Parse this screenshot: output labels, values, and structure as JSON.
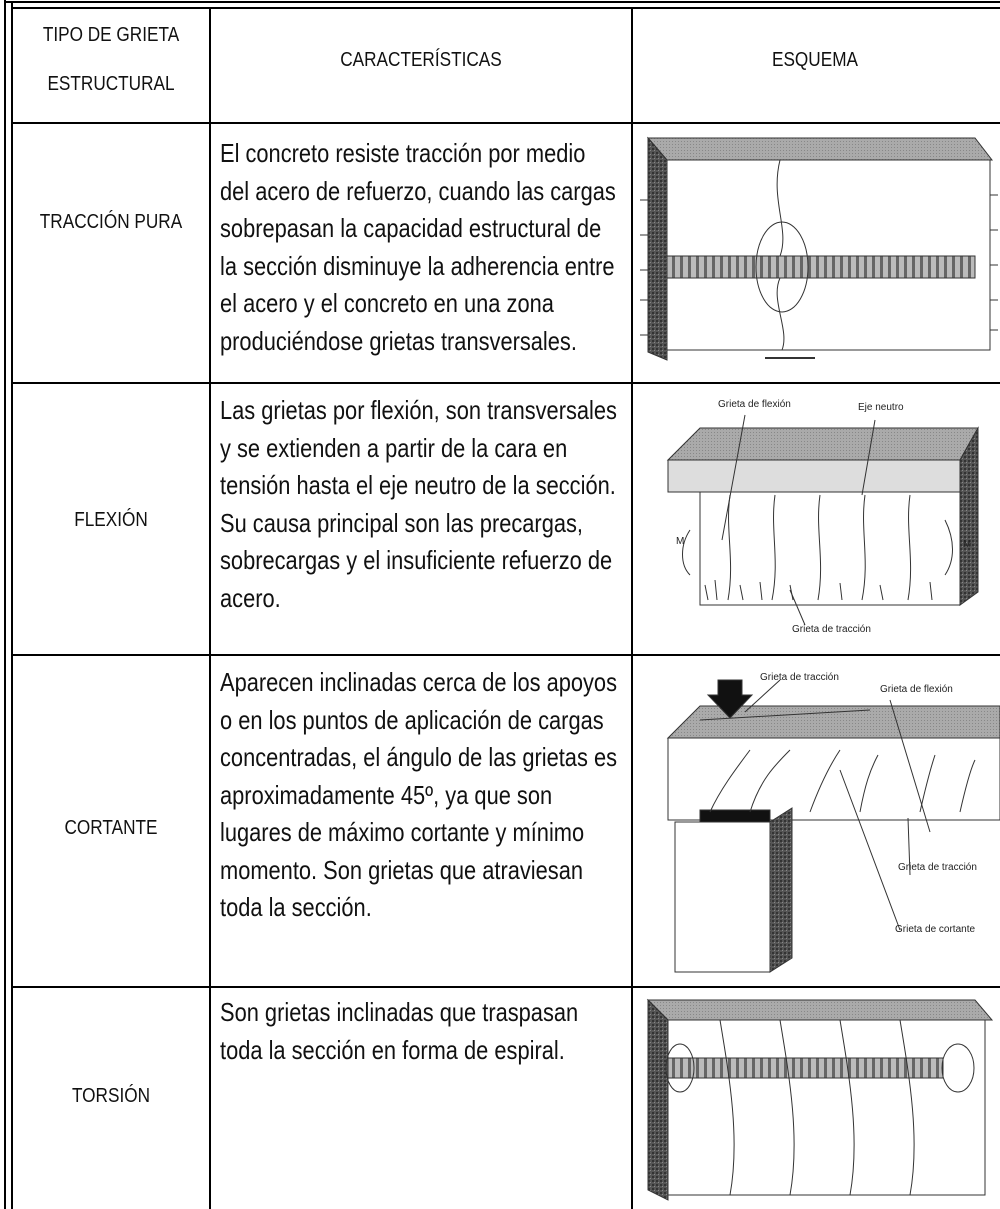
{
  "table": {
    "header": {
      "type": [
        "TIPO DE GRIETA",
        "ESTRUCTURAL"
      ],
      "characteristics": "CARACTERÍSTICAS",
      "scheme": "ESQUEMA"
    },
    "rows": [
      {
        "type": "TRACCIÓN PURA",
        "characteristics": [
          "El concreto resiste tracción por medio",
          "del acero de refuerzo, cuando las cargas",
          "sobrepasan la capacidad estructural de",
          "la sección disminuye la adherencia entre",
          "el acero y el concreto en una zona",
          "produciéndose grietas transversales."
        ]
      },
      {
        "type": "FLEXIÓN",
        "characteristics": [
          "Las grietas por flexión, son transversales",
          "y se extienden a partir de la cara en",
          "tensión hasta el eje neutro de la sección.",
          "Su causa principal son las precargas,",
          "sobrecargas y el insuficiente refuerzo de",
          "acero."
        ],
        "diagram_labels": [
          "Grieta de flexión",
          "Eje neutro",
          "M",
          "M",
          "Grieta de tracción"
        ]
      },
      {
        "type": "CORTANTE",
        "characteristics": [
          "Aparecen inclinadas cerca de los apoyos",
          "o en los puntos de aplicación de cargas",
          "concentradas, el ángulo de las grietas es",
          "aproximadamente 45º, ya que son",
          "lugares de máximo cortante y mínimo",
          "momento. Son grietas que atraviesan",
          "toda la sección."
        ],
        "diagram_labels": [
          "Grieta de tracción",
          "Grieta de flexión",
          "Grieta de tracción",
          "Grieta de cortante"
        ]
      },
      {
        "type": "TORSIÓN",
        "characteristics": [
          "Son grietas inclinadas que traspasan",
          "toda la sección en forma de espiral."
        ]
      }
    ]
  }
}
